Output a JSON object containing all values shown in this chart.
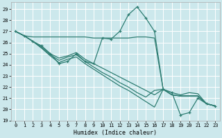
{
  "xlabel": "Humidex (Indice chaleur)",
  "bg_color": "#cce8ec",
  "line_color": "#2e7d72",
  "grid_color": "#b0d8dc",
  "xlim": [
    -0.5,
    23.5
  ],
  "ylim": [
    19.0,
    29.6
  ],
  "yticks": [
    19,
    20,
    21,
    22,
    23,
    24,
    25,
    26,
    27,
    28,
    29
  ],
  "xticks": [
    0,
    1,
    2,
    3,
    4,
    5,
    6,
    7,
    8,
    9,
    10,
    11,
    12,
    13,
    14,
    15,
    16,
    17,
    18,
    19,
    20,
    21,
    22,
    23
  ],
  "series": [
    {
      "x": [
        0,
        1,
        2,
        3,
        4,
        5,
        6,
        7,
        8,
        9,
        10,
        11,
        12,
        13,
        14,
        15,
        16,
        17,
        18,
        19,
        20,
        21,
        22,
        23
      ],
      "y": [
        27.0,
        26.6,
        26.1,
        25.7,
        25.0,
        24.1,
        24.3,
        25.0,
        24.3,
        24.1,
        26.4,
        26.3,
        27.0,
        28.5,
        29.2,
        28.2,
        27.0,
        21.8,
        21.5,
        19.5,
        19.7,
        21.0,
        20.5,
        20.3
      ],
      "marker": "+"
    },
    {
      "x": [
        0,
        1,
        2,
        3,
        4,
        5,
        6,
        7,
        8,
        9,
        10,
        11,
        12,
        13,
        14,
        15,
        16,
        17,
        18,
        19,
        20,
        21,
        22,
        23
      ],
      "y": [
        27.0,
        26.6,
        26.5,
        26.5,
        26.5,
        26.5,
        26.5,
        26.5,
        26.5,
        26.4,
        26.4,
        26.4,
        26.4,
        26.4,
        26.5,
        26.5,
        26.4,
        21.8,
        21.3,
        21.2,
        21.2,
        21.2,
        20.5,
        20.3
      ],
      "marker": null
    },
    {
      "x": [
        0,
        1,
        2,
        3,
        4,
        5,
        6,
        7,
        8,
        9,
        10,
        11,
        12,
        13,
        14,
        15,
        16,
        17,
        18,
        19,
        20,
        21,
        22,
        23
      ],
      "y": [
        27.0,
        26.6,
        26.1,
        25.6,
        25.0,
        24.6,
        24.8,
        25.1,
        24.5,
        24.1,
        23.7,
        23.3,
        22.9,
        22.5,
        22.1,
        21.7,
        21.3,
        21.8,
        21.3,
        21.2,
        21.2,
        21.2,
        20.5,
        20.3
      ],
      "marker": null
    },
    {
      "x": [
        0,
        1,
        2,
        3,
        4,
        5,
        6,
        7,
        8,
        9,
        10,
        11,
        12,
        13,
        14,
        15,
        16,
        17,
        18,
        19,
        20,
        21,
        22,
        23
      ],
      "y": [
        27.0,
        26.6,
        26.1,
        25.5,
        24.9,
        24.4,
        24.7,
        24.9,
        24.3,
        23.8,
        23.3,
        22.9,
        22.4,
        22.0,
        21.5,
        21.1,
        21.7,
        21.8,
        21.3,
        21.2,
        21.2,
        21.2,
        20.5,
        20.3
      ],
      "marker": null
    },
    {
      "x": [
        0,
        1,
        2,
        3,
        4,
        5,
        6,
        7,
        8,
        9,
        10,
        11,
        12,
        13,
        14,
        15,
        16,
        17,
        18,
        19,
        20,
        21,
        22,
        23
      ],
      "y": [
        27.0,
        26.6,
        26.1,
        25.5,
        24.8,
        24.2,
        24.5,
        24.7,
        24.1,
        23.6,
        23.1,
        22.6,
        22.1,
        21.7,
        21.2,
        20.7,
        20.2,
        21.8,
        21.5,
        21.3,
        21.5,
        21.4,
        20.5,
        20.3
      ],
      "marker": null
    }
  ]
}
